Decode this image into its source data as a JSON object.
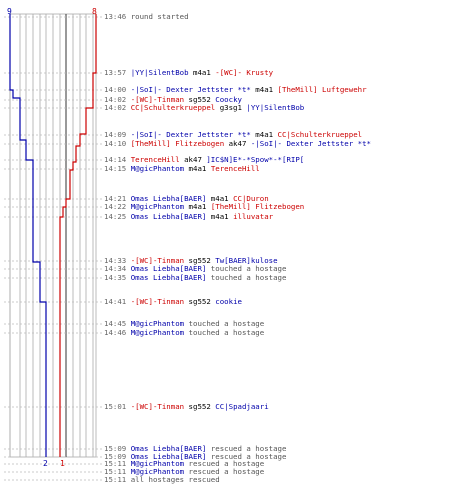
{
  "colors": {
    "blue_team": "#0000aa",
    "red_team": "#cc0000",
    "grid": "#999999",
    "time": "#666666",
    "event": "#555555"
  },
  "counts": {
    "blue_start": "9",
    "red_start": "8",
    "blue_end": "2",
    "red_end": "1"
  },
  "log": [
    {
      "t": "13:46",
      "parts": [
        {
          "c": "ev",
          "s": "round started"
        }
      ]
    },
    {
      "t": "13:57",
      "parts": [
        {
          "c": "blue",
          "s": "|YY|SilentBob"
        },
        {
          "c": "act",
          "s": " m4a1 "
        },
        {
          "c": "red",
          "s": "-[WC]- Krusty"
        }
      ]
    },
    {
      "t": "14:00",
      "parts": [
        {
          "c": "blue",
          "s": "-|SoI|- Dexter Jettster *t*"
        },
        {
          "c": "act",
          "s": " m4a1 "
        },
        {
          "c": "red",
          "s": "[TheMill] Luftgewehr"
        }
      ]
    },
    {
      "t": "14:02",
      "parts": [
        {
          "c": "red",
          "s": "-[WC]-Tinman"
        },
        {
          "c": "act",
          "s": " sg552 "
        },
        {
          "c": "blue",
          "s": "Coocky"
        }
      ]
    },
    {
      "t": "14:02",
      "parts": [
        {
          "c": "red",
          "s": "CC|Schulterkrueppel"
        },
        {
          "c": "act",
          "s": " g3sg1 "
        },
        {
          "c": "blue",
          "s": "|YY|SilentBob"
        }
      ]
    },
    {
      "t": "14:09",
      "parts": [
        {
          "c": "blue",
          "s": "-|SoI|- Dexter Jettster *t*"
        },
        {
          "c": "act",
          "s": " m4a1 "
        },
        {
          "c": "red",
          "s": "CC|Schulterkrueppel"
        }
      ]
    },
    {
      "t": "14:10",
      "parts": [
        {
          "c": "red",
          "s": "[TheMill] Flitzebogen"
        },
        {
          "c": "act",
          "s": " ak47 "
        },
        {
          "c": "blue",
          "s": "-|SoI|- Dexter Jettster *t*"
        }
      ]
    },
    {
      "t": "14:14",
      "parts": [
        {
          "c": "red",
          "s": "TerenceHill"
        },
        {
          "c": "act",
          "s": " ak47 "
        },
        {
          "c": "blue",
          "s": "]IC$N]E*-*Spow*-*[RIP["
        }
      ]
    },
    {
      "t": "14:15",
      "parts": [
        {
          "c": "blue",
          "s": "M@gicPhantom"
        },
        {
          "c": "act",
          "s": " m4a1 "
        },
        {
          "c": "red",
          "s": "TerenceHill"
        }
      ]
    },
    {
      "t": "14:21",
      "parts": [
        {
          "c": "blue",
          "s": "Omas Liebha[BAER]"
        },
        {
          "c": "act",
          "s": " m4a1 "
        },
        {
          "c": "red",
          "s": "CC|Duron"
        }
      ]
    },
    {
      "t": "14:22",
      "parts": [
        {
          "c": "blue",
          "s": "M@gicPhantom"
        },
        {
          "c": "act",
          "s": " m4a1 "
        },
        {
          "c": "red",
          "s": "[TheMill] Flitzebogen"
        }
      ]
    },
    {
      "t": "14:25",
      "parts": [
        {
          "c": "blue",
          "s": "Omas Liebha[BAER]"
        },
        {
          "c": "act",
          "s": " m4a1 "
        },
        {
          "c": "red",
          "s": "illuvatar"
        }
      ]
    },
    {
      "t": "14:33",
      "parts": [
        {
          "c": "red",
          "s": "-[WC]-Tinman"
        },
        {
          "c": "act",
          "s": " sg552 "
        },
        {
          "c": "blue",
          "s": "Tw[BAER]kulose"
        }
      ]
    },
    {
      "t": "14:34",
      "parts": [
        {
          "c": "blue",
          "s": "Omas Liebha[BAER]"
        },
        {
          "c": "ev",
          "s": " touched a hostage"
        }
      ]
    },
    {
      "t": "14:35",
      "parts": [
        {
          "c": "blue",
          "s": "Omas Liebha[BAER]"
        },
        {
          "c": "ev",
          "s": " touched a hostage"
        }
      ]
    },
    {
      "t": "14:41",
      "parts": [
        {
          "c": "red",
          "s": "-[WC]-Tinman"
        },
        {
          "c": "act",
          "s": " sg552 "
        },
        {
          "c": "blue",
          "s": "cookie"
        }
      ]
    },
    {
      "t": "14:45",
      "parts": [
        {
          "c": "blue",
          "s": "M@gicPhantom"
        },
        {
          "c": "ev",
          "s": " touched a hostage"
        }
      ]
    },
    {
      "t": "14:46",
      "parts": [
        {
          "c": "blue",
          "s": "M@gicPhantom"
        },
        {
          "c": "ev",
          "s": " touched a hostage"
        }
      ]
    },
    {
      "t": "15:01",
      "parts": [
        {
          "c": "red",
          "s": "-[WC]-Tinman"
        },
        {
          "c": "act",
          "s": " sg552 "
        },
        {
          "c": "blue",
          "s": "CC|Spadjaari"
        }
      ]
    },
    {
      "t": "15:09",
      "parts": [
        {
          "c": "blue",
          "s": "Omas Liebha[BAER]"
        },
        {
          "c": "ev",
          "s": " rescued a hostage"
        }
      ]
    },
    {
      "t": "15:09",
      "parts": [
        {
          "c": "blue",
          "s": "Omas Liebha[BAER]"
        },
        {
          "c": "ev",
          "s": " rescued a hostage"
        }
      ]
    },
    {
      "t": "15:11",
      "parts": [
        {
          "c": "blue",
          "s": "M@gicPhantom"
        },
        {
          "c": "ev",
          "s": " rescued a hostage"
        }
      ]
    },
    {
      "t": "15:11",
      "parts": [
        {
          "c": "blue",
          "s": "M@gicPhantom"
        },
        {
          "c": "ev",
          "s": " rescued a hostage"
        }
      ]
    },
    {
      "t": "15:11",
      "parts": [
        {
          "c": "ev",
          "s": "all hostages rescued"
        }
      ]
    }
  ],
  "steps": {
    "blue": [
      [
        13.57,
        1
      ],
      [
        14.0,
        2
      ],
      [
        14.02,
        2
      ],
      [
        14.09,
        3
      ],
      [
        14.1,
        3
      ],
      [
        14.14,
        4
      ],
      [
        14.15,
        4
      ],
      [
        14.21,
        4
      ],
      [
        14.22,
        4
      ],
      [
        14.25,
        4
      ],
      [
        14.33,
        5
      ],
      [
        14.41,
        6
      ],
      [
        15.01,
        7
      ]
    ],
    "red": [
      [
        13.57,
        1
      ],
      [
        14.0,
        2
      ],
      [
        14.02,
        2
      ],
      [
        14.09,
        3
      ],
      [
        14.1,
        3
      ],
      [
        14.14,
        4
      ],
      [
        14.15,
        5
      ],
      [
        14.21,
        6
      ],
      [
        14.22,
        7
      ],
      [
        14.25,
        7
      ]
    ]
  }
}
